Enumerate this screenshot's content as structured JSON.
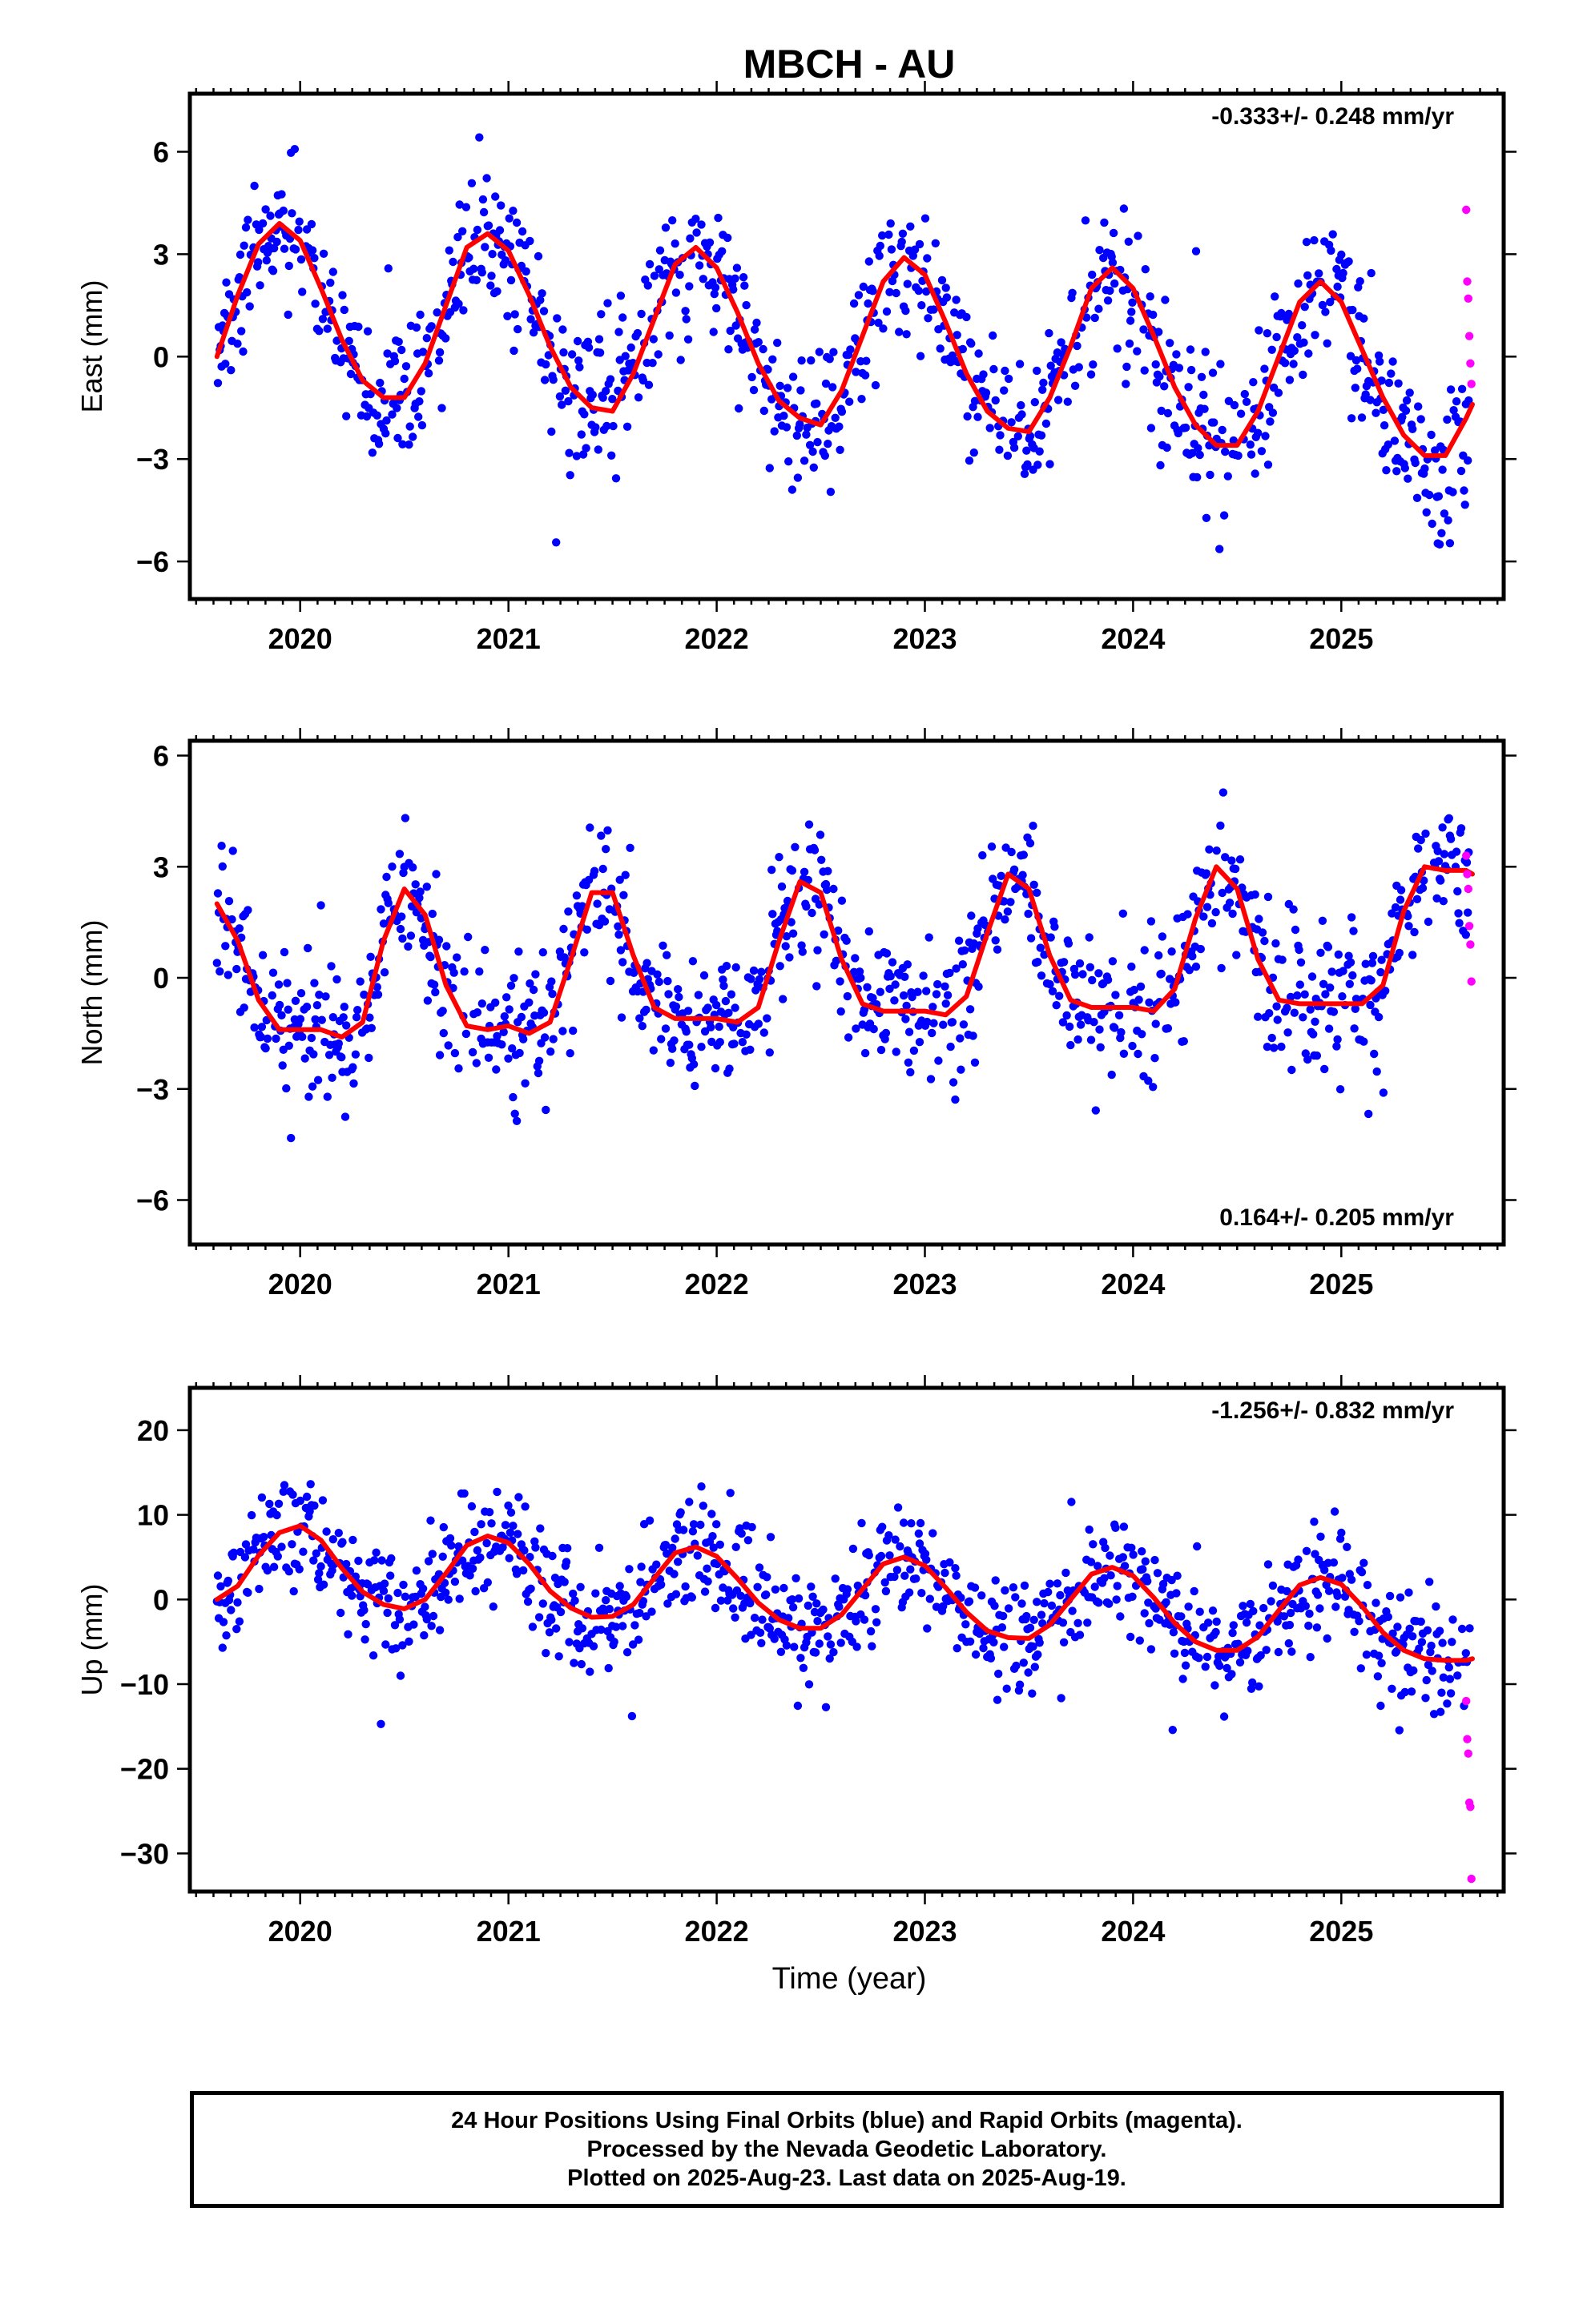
{
  "chart_data": {
    "type": "scatter",
    "title": "MBCH - AU",
    "xlabel": "Time (year)",
    "xlim": [
      2019.47,
      2025.78
    ],
    "x_ticks": [
      "2020",
      "2021",
      "2022",
      "2023",
      "2024",
      "2025"
    ],
    "legend": "none",
    "grid": false,
    "colors": {
      "final_orbits": "#0000ff",
      "rapid_orbits": "#ff00ff",
      "model_fit": "#ff0000"
    },
    "panels": [
      {
        "name": "East",
        "ylabel": "East (mm)",
        "ylim": [
          -7.1,
          7.7
        ],
        "y_ticks": [
          6,
          3,
          0,
          -3,
          -6
        ],
        "y_tick_labels": [
          "6",
          "3",
          "0",
          "−3",
          "−6"
        ],
        "rate_label": "-0.333+/- 0.248 mm/yr",
        "rate_position": "top-right",
        "trend_mm_per_yr": -0.333,
        "trend_sigma": 0.248,
        "model_fit": {
          "x": [
            2019.6,
            2019.7,
            2019.8,
            2019.9,
            2020.0,
            2020.1,
            2020.2,
            2020.3,
            2020.4,
            2020.5,
            2020.6,
            2020.7,
            2020.8,
            2020.9,
            2021.0,
            2021.1,
            2021.2,
            2021.3,
            2021.4,
            2021.5,
            2021.6,
            2021.7,
            2021.8,
            2021.9,
            2022.0,
            2022.1,
            2022.2,
            2022.3,
            2022.4,
            2022.5,
            2022.6,
            2022.7,
            2022.8,
            2022.9,
            2023.0,
            2023.1,
            2023.2,
            2023.3,
            2023.4,
            2023.5,
            2023.6,
            2023.7,
            2023.8,
            2023.9,
            2024.0,
            2024.1,
            2024.2,
            2024.3,
            2024.4,
            2024.5,
            2024.6,
            2024.7,
            2024.8,
            2024.9,
            2025.0,
            2025.1,
            2025.2,
            2025.3,
            2025.4,
            2025.5,
            2025.6,
            2025.63
          ],
          "y": [
            0.0,
            1.8,
            3.3,
            3.9,
            3.4,
            2.0,
            0.5,
            -0.7,
            -1.2,
            -1.2,
            -0.2,
            1.5,
            3.2,
            3.6,
            3.1,
            1.8,
            0.3,
            -0.9,
            -1.5,
            -1.6,
            -0.5,
            1.1,
            2.7,
            3.2,
            2.6,
            1.3,
            -0.2,
            -1.3,
            -1.8,
            -2.0,
            -1.0,
            0.6,
            2.2,
            2.9,
            2.4,
            1.0,
            -0.5,
            -1.6,
            -2.1,
            -2.2,
            -1.2,
            0.3,
            2.0,
            2.6,
            2.0,
            0.6,
            -0.9,
            -2.0,
            -2.6,
            -2.6,
            -1.6,
            0.0,
            1.6,
            2.2,
            1.6,
            0.2,
            -1.2,
            -2.3,
            -2.9,
            -2.9,
            -1.8,
            -1.4
          ]
        },
        "final_orbits_summary": "daily positions 2019.6–2025.62, scattered about the seasonal model with ~1 mm scatter",
        "rapid_orbits": {
          "x": [
            2025.6,
            2025.605,
            2025.61,
            2025.615,
            2025.62,
            2025.625
          ],
          "y": [
            4.3,
            2.2,
            1.7,
            0.6,
            -0.2,
            -0.8
          ]
        }
      },
      {
        "name": "North",
        "ylabel": "North (mm)",
        "ylim": [
          -7.2,
          6.4
        ],
        "y_ticks": [
          6,
          3,
          0,
          -3,
          -6
        ],
        "y_tick_labels": [
          "6",
          "3",
          "0",
          "−3",
          "−6"
        ],
        "rate_label": "0.164+/- 0.205 mm/yr",
        "rate_position": "bottom-right",
        "trend_mm_per_yr": 0.164,
        "trend_sigma": 0.205,
        "model_fit": {
          "x": [
            2019.6,
            2019.7,
            2019.8,
            2019.9,
            2020.0,
            2020.1,
            2020.2,
            2020.3,
            2020.4,
            2020.5,
            2020.6,
            2020.7,
            2020.8,
            2020.9,
            2021.0,
            2021.1,
            2021.2,
            2021.3,
            2021.4,
            2021.5,
            2021.6,
            2021.7,
            2021.8,
            2021.9,
            2022.0,
            2022.1,
            2022.2,
            2022.3,
            2022.4,
            2022.5,
            2022.6,
            2022.7,
            2022.8,
            2022.9,
            2023.0,
            2023.1,
            2023.2,
            2023.3,
            2023.4,
            2023.5,
            2023.6,
            2023.7,
            2023.8,
            2023.9,
            2024.0,
            2024.1,
            2024.2,
            2024.3,
            2024.4,
            2024.5,
            2024.6,
            2024.7,
            2024.8,
            2024.9,
            2025.0,
            2025.1,
            2025.2,
            2025.3,
            2025.4,
            2025.5,
            2025.6,
            2025.63
          ],
          "y": [
            2.0,
            1.0,
            -0.6,
            -1.4,
            -1.4,
            -1.4,
            -1.6,
            -1.2,
            1.0,
            2.4,
            1.7,
            -0.2,
            -1.3,
            -1.4,
            -1.3,
            -1.5,
            -1.2,
            0.5,
            2.3,
            2.3,
            0.6,
            -0.8,
            -1.1,
            -1.1,
            -1.1,
            -1.2,
            -0.8,
            1.0,
            2.6,
            2.3,
            0.5,
            -0.7,
            -0.9,
            -0.9,
            -0.9,
            -1.0,
            -0.5,
            1.2,
            2.8,
            2.4,
            0.6,
            -0.6,
            -0.8,
            -0.8,
            -0.8,
            -0.9,
            -0.3,
            1.6,
            3.0,
            2.4,
            0.5,
            -0.6,
            -0.7,
            -0.7,
            -0.7,
            -0.7,
            -0.2,
            1.8,
            3.0,
            2.9,
            2.9,
            2.8
          ]
        },
        "final_orbits_summary": "daily positions 2019.6–2025.62, scattered about the seasonal model with ~1 mm scatter",
        "rapid_orbits": {
          "x": [
            2025.6,
            2025.605,
            2025.61,
            2025.615,
            2025.62,
            2025.625
          ],
          "y": [
            3.3,
            2.8,
            2.4,
            1.4,
            0.9,
            -0.1
          ]
        }
      },
      {
        "name": "Up",
        "ylabel": "Up (mm)",
        "ylim": [
          -34.5,
          25.0
        ],
        "y_ticks": [
          20,
          10,
          0,
          -10,
          -20,
          -30
        ],
        "y_tick_labels": [
          "20",
          "10",
          "0",
          "−10",
          "−20",
          "−30"
        ],
        "rate_label": "-1.256+/- 0.832 mm/yr",
        "rate_position": "top-right",
        "trend_mm_per_yr": -1.256,
        "trend_sigma": 0.832,
        "model_fit": {
          "x": [
            2019.6,
            2019.7,
            2019.8,
            2019.9,
            2020.0,
            2020.1,
            2020.2,
            2020.3,
            2020.4,
            2020.5,
            2020.6,
            2020.7,
            2020.8,
            2020.9,
            2021.0,
            2021.1,
            2021.2,
            2021.3,
            2021.4,
            2021.5,
            2021.6,
            2021.7,
            2021.8,
            2021.9,
            2022.0,
            2022.1,
            2022.2,
            2022.3,
            2022.4,
            2022.5,
            2022.6,
            2022.7,
            2022.8,
            2022.9,
            2023.0,
            2023.1,
            2023.2,
            2023.3,
            2023.4,
            2023.5,
            2023.6,
            2023.7,
            2023.8,
            2023.9,
            2024.0,
            2024.1,
            2024.2,
            2024.3,
            2024.4,
            2024.5,
            2024.6,
            2024.7,
            2024.8,
            2024.9,
            2025.0,
            2025.1,
            2025.2,
            2025.3,
            2025.4,
            2025.5,
            2025.6,
            2025.63
          ],
          "y": [
            0.0,
            1.6,
            5.2,
            7.9,
            8.7,
            7.0,
            3.7,
            0.9,
            -0.6,
            -1.1,
            0.0,
            3.1,
            6.4,
            7.5,
            6.7,
            4.2,
            1.0,
            -1.0,
            -2.1,
            -2.0,
            -0.6,
            2.5,
            5.5,
            6.2,
            5.1,
            2.5,
            -0.4,
            -2.4,
            -3.4,
            -3.4,
            -1.8,
            1.2,
            4.2,
            5.0,
            4.0,
            1.4,
            -1.5,
            -3.7,
            -4.5,
            -4.6,
            -3.0,
            0.0,
            3.0,
            3.8,
            2.8,
            0.2,
            -2.8,
            -5.0,
            -6.0,
            -6.0,
            -4.4,
            -1.3,
            1.7,
            2.6,
            1.8,
            -0.8,
            -3.9,
            -6.0,
            -7.0,
            -7.2,
            -7.2,
            -7.0
          ]
        },
        "final_orbits_summary": "daily positions 2019.6–2025.62, scattered about the seasonal model with ~3.5 mm scatter",
        "rapid_orbits": {
          "x": [
            2025.6,
            2025.605,
            2025.61,
            2025.615,
            2025.62,
            2025.625
          ],
          "y": [
            -12.0,
            -16.5,
            -18.2,
            -24.0,
            -24.5,
            -33.0
          ]
        }
      }
    ]
  },
  "footer": {
    "line1": "24 Hour Positions Using Final Orbits (blue) and Rapid Orbits (magenta).",
    "line2": "Processed by the Nevada Geodetic Laboratory.",
    "line3": "Plotted on 2025-Aug-23. Last data on 2025-Aug-19."
  }
}
